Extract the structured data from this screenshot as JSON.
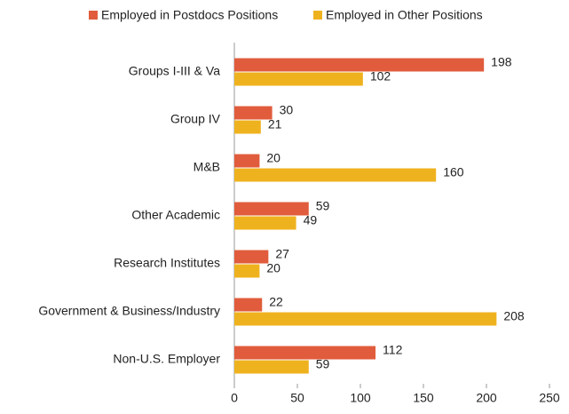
{
  "chart_data": {
    "type": "hbar",
    "categories": [
      "Groups I-III & Va",
      "Group IV",
      "M&B",
      "Other Academic",
      "Research Institutes",
      "Government & Business/Industry",
      "Non-U.S. Employer"
    ],
    "series": [
      {
        "name": "Employed in Postdocs Positions",
        "color": "#e05c3c",
        "values": [
          198,
          30,
          20,
          59,
          27,
          22,
          112
        ]
      },
      {
        "name": "Employed in Other Positions",
        "color": "#efb21f",
        "values": [
          102,
          21,
          160,
          49,
          20,
          208,
          59
        ]
      }
    ],
    "xlim": [
      0,
      250
    ],
    "xticks": [
      0,
      50,
      100,
      150,
      200,
      250
    ],
    "grid": false,
    "legend": "top"
  }
}
